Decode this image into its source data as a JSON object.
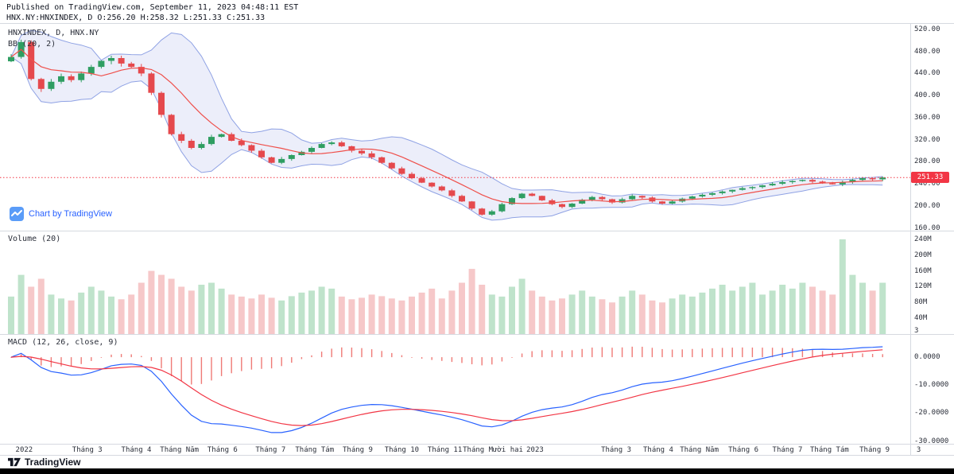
{
  "header": {
    "published_line": "Published on TradingView.com, September 11, 2023 04:48:11 EST",
    "symbol_line": "HNX.NY:HNXINDEX, D O:256.20 H:258.32 L:251.33 C:251.33"
  },
  "main_panel": {
    "legend_symbol": "HNXINDEX, D, HNX.NY",
    "legend_indicator": "BB (20, 2)",
    "watermark_text": "Chart by TradingView",
    "last_price": "251.33",
    "price_ticks": [
      "520.00",
      "480.00",
      "440.00",
      "400.00",
      "360.00",
      "320.00",
      "280.00",
      "240.00",
      "200.00",
      "160.00"
    ]
  },
  "volume_panel": {
    "label": "Volume (20)",
    "ticks": [
      "240M",
      "200M",
      "160M",
      "120M",
      "80M",
      "40M"
    ],
    "bottom_label": "3"
  },
  "macd_panel": {
    "label": "MACD (12, 26, close, 9)",
    "ticks": [
      "0.0000",
      "-10.0000",
      "-20.0000",
      "-30.0000"
    ]
  },
  "time_axis": {
    "labels": [
      "2022",
      "Tháng 3",
      "Tháng 4",
      "Tháng Năm",
      "Tháng 6",
      "Tháng 7",
      "Tháng Tám",
      "Tháng 9",
      "Tháng 10",
      "Tháng 11",
      "Tháng Mười hai",
      "2023",
      "Tháng 3",
      "Tháng 4",
      "Tháng Năm",
      "Tháng 6",
      "Tháng 7",
      "Tháng Tám",
      "Tháng 9",
      "3"
    ],
    "positions": [
      1.3,
      7.6,
      12.5,
      16.8,
      21.1,
      25.9,
      30.3,
      34.6,
      39.0,
      43.3,
      48.1,
      52.3,
      60.4,
      64.6,
      68.7,
      73.1,
      77.5,
      81.7,
      86.2,
      90.6
    ]
  },
  "footer": {
    "brand": "TradingView"
  },
  "colors": {
    "up": "#2f9e62",
    "down": "#e5494d",
    "vol_up": "#bfe3cb",
    "vol_down": "#f6c8c9",
    "bb_band": "#8fa2e4",
    "bb_fill": "rgba(126,144,220,0.15)",
    "bb_basis": "#ef4f4a",
    "macd_line": "#2962ff",
    "signal_line": "#f23645",
    "hist": "#ef7a76",
    "last_price_line": "#f23645",
    "badge_bg": "#f23645",
    "badge_text": "#ffffff",
    "axis_text": "#2a2e39",
    "border": "#d6d9e0",
    "link_blue": "#2962ff"
  },
  "chart_data": [
    {
      "type": "candlestick",
      "panel": "price",
      "title": "HNXINDEX, D, HNX.NY",
      "indicator": "BB (20, 2)",
      "ylim": [
        155,
        530
      ],
      "y_ticks": [
        520,
        480,
        440,
        400,
        360,
        320,
        280,
        240,
        200,
        160
      ],
      "last_close": 251.33,
      "closes": [
        470,
        497,
        430,
        412,
        425,
        435,
        428,
        440,
        452,
        463,
        468,
        458,
        452,
        440,
        405,
        365,
        330,
        318,
        305,
        312,
        325,
        330,
        318,
        310,
        300,
        288,
        278,
        285,
        292,
        298,
        305,
        312,
        315,
        308,
        300,
        295,
        288,
        278,
        268,
        258,
        250,
        242,
        235,
        228,
        218,
        208,
        195,
        184,
        190,
        203,
        214,
        222,
        218,
        210,
        203,
        198,
        204,
        211,
        216,
        212,
        206,
        212,
        218,
        215,
        208,
        204,
        208,
        213,
        217,
        220,
        223,
        226,
        229,
        232,
        234,
        237,
        240,
        243,
        245,
        247,
        244,
        241,
        239,
        243,
        247,
        250,
        248,
        251.33
      ]
    },
    {
      "type": "bar",
      "panel": "volume",
      "title": "Volume (20)",
      "ylim_millions": [
        0,
        260
      ],
      "y_ticks_millions": [
        240,
        200,
        160,
        120,
        80,
        40
      ],
      "values_millions": [
        95,
        150,
        120,
        140,
        100,
        90,
        85,
        105,
        120,
        110,
        95,
        88,
        100,
        130,
        160,
        150,
        140,
        120,
        110,
        125,
        130,
        115,
        100,
        95,
        90,
        100,
        92,
        85,
        96,
        105,
        110,
        120,
        115,
        95,
        88,
        92,
        100,
        96,
        90,
        85,
        95,
        105,
        115,
        90,
        110,
        130,
        165,
        125,
        100,
        95,
        120,
        140,
        110,
        95,
        85,
        90,
        100,
        110,
        95,
        88,
        80,
        95,
        110,
        100,
        85,
        80,
        90,
        100,
        95,
        105,
        115,
        125,
        110,
        120,
        130,
        100,
        110,
        125,
        115,
        130,
        120,
        110,
        100,
        240,
        150,
        130,
        110,
        130
      ]
    },
    {
      "type": "line",
      "panel": "macd",
      "title": "MACD (12, 26, close, 9)",
      "ylim": [
        8,
        -31
      ],
      "y_ticks": [
        0,
        -10,
        -20,
        -30
      ],
      "approx_range": [
        -27,
        3
      ],
      "derived_from_series": "price closes, EMA 12/26, signal 9"
    }
  ]
}
